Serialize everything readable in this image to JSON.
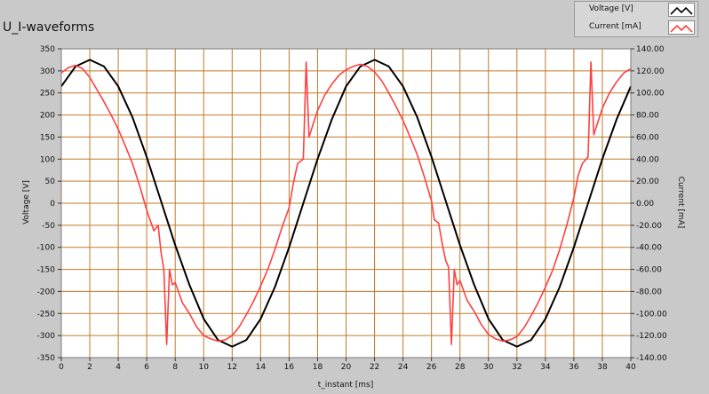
{
  "title": "U_I-waveforms",
  "legend": [
    {
      "name": "Voltage [V]",
      "color": "#000000"
    },
    {
      "name": "Current [mA]",
      "color": "#ff4040"
    }
  ],
  "colors": {
    "plot_background": "#ffffff",
    "grid": "#c07a2a",
    "frame": "#c9c9c9"
  },
  "chart_data": {
    "type": "line",
    "xlabel": "t_instant [ms]",
    "ylabel_left": "Voltage [V]",
    "ylabel_right": "Current [mA]",
    "xlim": [
      0,
      40
    ],
    "ylim_left": [
      -350,
      350
    ],
    "ylim_right": [
      -140,
      140
    ],
    "x_ticks": [
      "0",
      "2",
      "4",
      "6",
      "8",
      "10",
      "12",
      "14",
      "16",
      "18",
      "20",
      "22",
      "24",
      "26",
      "28",
      "30",
      "32",
      "34",
      "36",
      "38",
      "40"
    ],
    "y_left_ticks": [
      "350",
      "300",
      "250",
      "200",
      "150",
      "100",
      "50",
      "0",
      "-50",
      "-100",
      "-150",
      "-200",
      "-250",
      "-300",
      "-350"
    ],
    "y_right_ticks": [
      "140.00",
      "120.00",
      "100.00",
      "80.00",
      "60.00",
      "40.00",
      "20.00",
      "0.00",
      "-20.00",
      "-40.00",
      "-60.00",
      "-80.00",
      "-100.00",
      "-120.00",
      "-140.00"
    ],
    "grid": true,
    "legend_position": "top-right",
    "series": [
      {
        "name": "Voltage [V]",
        "axis": "left",
        "color": "#000000",
        "x": [
          0,
          1,
          2,
          3,
          4,
          5,
          6,
          7,
          8,
          9,
          10,
          11,
          12,
          13,
          14,
          15,
          16,
          17,
          18,
          19,
          20,
          21,
          22,
          23,
          24,
          25,
          26,
          27,
          28,
          29,
          30,
          31,
          32,
          33,
          34,
          35,
          36,
          37,
          38,
          39,
          40
        ],
        "values": [
          265,
          310,
          325,
          310,
          265,
          195,
          105,
          5,
          -95,
          -185,
          -262,
          -310,
          -325,
          -310,
          -262,
          -190,
          -100,
          0,
          100,
          190,
          265,
          310,
          325,
          310,
          265,
          195,
          105,
          5,
          -95,
          -185,
          -262,
          -310,
          -325,
          -310,
          -262,
          -190,
          -100,
          0,
          100,
          190,
          265
        ]
      },
      {
        "name": "Current [mA]",
        "axis": "right",
        "color": "#ff4040",
        "x": [
          0,
          0.5,
          1,
          1.5,
          2,
          2.5,
          3,
          3.5,
          4,
          4.5,
          5,
          5.5,
          6,
          6.2,
          6.5,
          6.8,
          7,
          7.2,
          7.4,
          7.6,
          7.8,
          8,
          8.5,
          9,
          9.5,
          10,
          10.5,
          11,
          11.5,
          12,
          12.5,
          13,
          13.5,
          14,
          14.5,
          15,
          15.5,
          16,
          16.3,
          16.6,
          17,
          17.2,
          17.4,
          17.6,
          17.8,
          18,
          18.5,
          19,
          19.5,
          20,
          20.5,
          21,
          21.5,
          22,
          22.5,
          23,
          23.5,
          24,
          24.5,
          25,
          25.5,
          26,
          26.2,
          26.5,
          26.8,
          27,
          27.2,
          27.4,
          27.6,
          27.8,
          28,
          28.5,
          29,
          29.5,
          30,
          30.5,
          31,
          31.5,
          32,
          32.5,
          33,
          33.5,
          34,
          34.5,
          35,
          35.5,
          36,
          36.3,
          36.6,
          37,
          37.2,
          37.4,
          37.6,
          37.8,
          38,
          38.5,
          39,
          39.5,
          40
        ],
        "values": [
          118,
          123,
          125,
          122,
          114,
          103,
          92,
          80,
          67,
          52,
          36,
          16,
          -6,
          -14,
          -25,
          -20,
          -44,
          -60,
          -128,
          -60,
          -74,
          -72,
          -90,
          -100,
          -112,
          -120,
          -123,
          -125,
          -124,
          -120,
          -112,
          -101,
          -89,
          -75,
          -60,
          -42,
          -22,
          -4,
          18,
          36,
          40,
          128,
          60,
          68,
          76,
          84,
          98,
          108,
          116,
          121,
          124,
          126,
          124,
          119,
          111,
          100,
          88,
          75,
          60,
          44,
          24,
          2,
          -15,
          -18,
          -40,
          -52,
          -58,
          -128,
          -60,
          -74,
          -70,
          -88,
          -98,
          -110,
          -119,
          -123,
          -125,
          -124,
          -121,
          -113,
          -102,
          -90,
          -76,
          -61,
          -42,
          -20,
          5,
          25,
          36,
          42,
          128,
          62,
          70,
          78,
          86,
          100,
          110,
          118,
          122
        ]
      }
    ]
  }
}
